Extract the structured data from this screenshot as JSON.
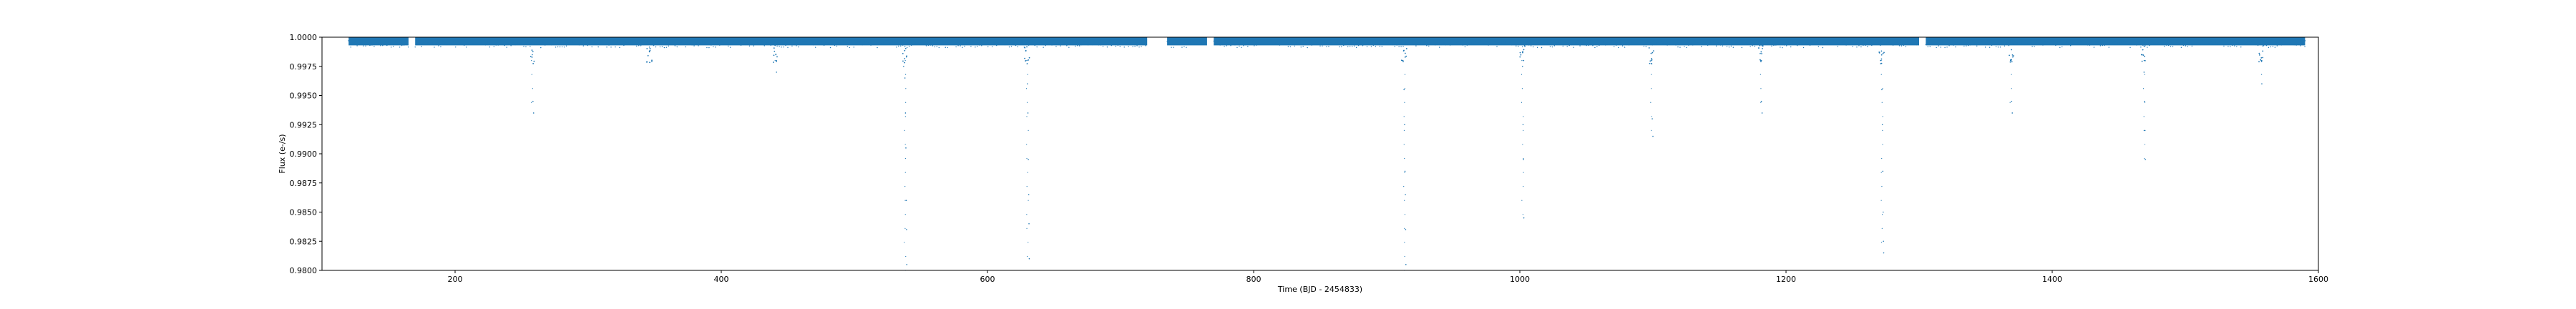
{
  "chart_data": {
    "type": "scatter",
    "title": "",
    "xlabel": "Time (BJD - 2454833)",
    "ylabel": "Flux (e-/s)",
    "xlim": [
      100,
      1600
    ],
    "ylim": [
      0.98,
      1.0
    ],
    "xticks": [
      200,
      400,
      600,
      800,
      1000,
      1200,
      1400,
      1600
    ],
    "yticks": [
      0.98,
      0.9825,
      0.985,
      0.9875,
      0.99,
      0.9925,
      0.995,
      0.9975,
      1.0
    ],
    "xtick_labels": [
      "200",
      "400",
      "600",
      "800",
      "1000",
      "1200",
      "1400",
      "1600"
    ],
    "ytick_labels": [
      "0.9800",
      "0.9825",
      "0.9850",
      "0.9875",
      "0.9900",
      "0.9925",
      "0.9950",
      "0.9975",
      "1.0000"
    ],
    "grid": false,
    "marker_color": "#1f77b4",
    "series": [
      {
        "name": "",
        "baseline": 0.9997,
        "coverage_segments": [
          [
            120,
            165
          ],
          [
            170,
            720
          ],
          [
            735,
            765
          ],
          [
            770,
            1300
          ],
          [
            1305,
            1590
          ]
        ],
        "dips": [
          {
            "x": 258,
            "depth_min": 0.9935
          },
          {
            "x": 346,
            "depth_min": 0.9985
          },
          {
            "x": 441,
            "depth_min": 0.997
          },
          {
            "x": 538,
            "depth_min": 0.98
          },
          {
            "x": 630,
            "depth_min": 0.9805
          },
          {
            "x": 913,
            "depth_min": 0.98
          },
          {
            "x": 1002,
            "depth_min": 0.9845
          },
          {
            "x": 1099,
            "depth_min": 0.9915
          },
          {
            "x": 1181,
            "depth_min": 0.9935
          },
          {
            "x": 1272,
            "depth_min": 0.9815
          },
          {
            "x": 1369,
            "depth_min": 0.9935
          },
          {
            "x": 1469,
            "depth_min": 0.9895
          },
          {
            "x": 1557,
            "depth_min": 0.996
          }
        ],
        "points": [
          {
            "x": 120,
            "y": 0.9997
          },
          {
            "x": 150,
            "y": 0.9996
          },
          {
            "x": 200,
            "y": 0.9997
          },
          {
            "x": 258,
            "y": 0.9985
          },
          {
            "x": 258.5,
            "y": 0.9945
          },
          {
            "x": 259,
            "y": 0.9935
          },
          {
            "x": 300,
            "y": 0.9997
          },
          {
            "x": 346,
            "y": 0.9988
          },
          {
            "x": 400,
            "y": 0.9997
          },
          {
            "x": 441,
            "y": 0.9985
          },
          {
            "x": 441.5,
            "y": 0.997
          },
          {
            "x": 500,
            "y": 0.9997
          },
          {
            "x": 537,
            "y": 0.9975
          },
          {
            "x": 538,
            "y": 0.9965
          },
          {
            "x": 538.4,
            "y": 0.9935
          },
          {
            "x": 538.7,
            "y": 0.9905
          },
          {
            "x": 539,
            "y": 0.986
          },
          {
            "x": 539.2,
            "y": 0.9835
          },
          {
            "x": 539.4,
            "y": 0.9805
          },
          {
            "x": 600,
            "y": 0.9997
          },
          {
            "x": 629,
            "y": 0.998
          },
          {
            "x": 630,
            "y": 0.996
          },
          {
            "x": 630.4,
            "y": 0.9935
          },
          {
            "x": 630.7,
            "y": 0.9895
          },
          {
            "x": 631,
            "y": 0.9865
          },
          {
            "x": 631.2,
            "y": 0.984
          },
          {
            "x": 631.4,
            "y": 0.981
          },
          {
            "x": 700,
            "y": 0.9997
          },
          {
            "x": 800,
            "y": 0.9997
          },
          {
            "x": 912,
            "y": 0.998
          },
          {
            "x": 913,
            "y": 0.9955
          },
          {
            "x": 913.4,
            "y": 0.9925
          },
          {
            "x": 913.7,
            "y": 0.9885
          },
          {
            "x": 914,
            "y": 0.9865
          },
          {
            "x": 914.2,
            "y": 0.9835
          },
          {
            "x": 914.4,
            "y": 0.9805
          },
          {
            "x": 1002,
            "y": 0.9975
          },
          {
            "x": 1002.4,
            "y": 0.9925
          },
          {
            "x": 1002.7,
            "y": 0.9895
          },
          {
            "x": 1003,
            "y": 0.9845
          },
          {
            "x": 1099,
            "y": 0.998
          },
          {
            "x": 1099.5,
            "y": 0.993
          },
          {
            "x": 1100,
            "y": 0.9915
          },
          {
            "x": 1181,
            "y": 0.998
          },
          {
            "x": 1181.5,
            "y": 0.9945
          },
          {
            "x": 1182,
            "y": 0.9935
          },
          {
            "x": 1271,
            "y": 0.998
          },
          {
            "x": 1272,
            "y": 0.9955
          },
          {
            "x": 1272.4,
            "y": 0.9925
          },
          {
            "x": 1272.7,
            "y": 0.9885
          },
          {
            "x": 1273,
            "y": 0.985
          },
          {
            "x": 1273.2,
            "y": 0.9825
          },
          {
            "x": 1273.4,
            "y": 0.9815
          },
          {
            "x": 1369,
            "y": 0.998
          },
          {
            "x": 1369.5,
            "y": 0.9945
          },
          {
            "x": 1370,
            "y": 0.9935
          },
          {
            "x": 1469,
            "y": 0.997
          },
          {
            "x": 1469.4,
            "y": 0.9945
          },
          {
            "x": 1469.7,
            "y": 0.992
          },
          {
            "x": 1470,
            "y": 0.9895
          },
          {
            "x": 1557,
            "y": 0.998
          },
          {
            "x": 1557.5,
            "y": 0.996
          },
          {
            "x": 1590,
            "y": 0.9997
          }
        ]
      }
    ]
  }
}
